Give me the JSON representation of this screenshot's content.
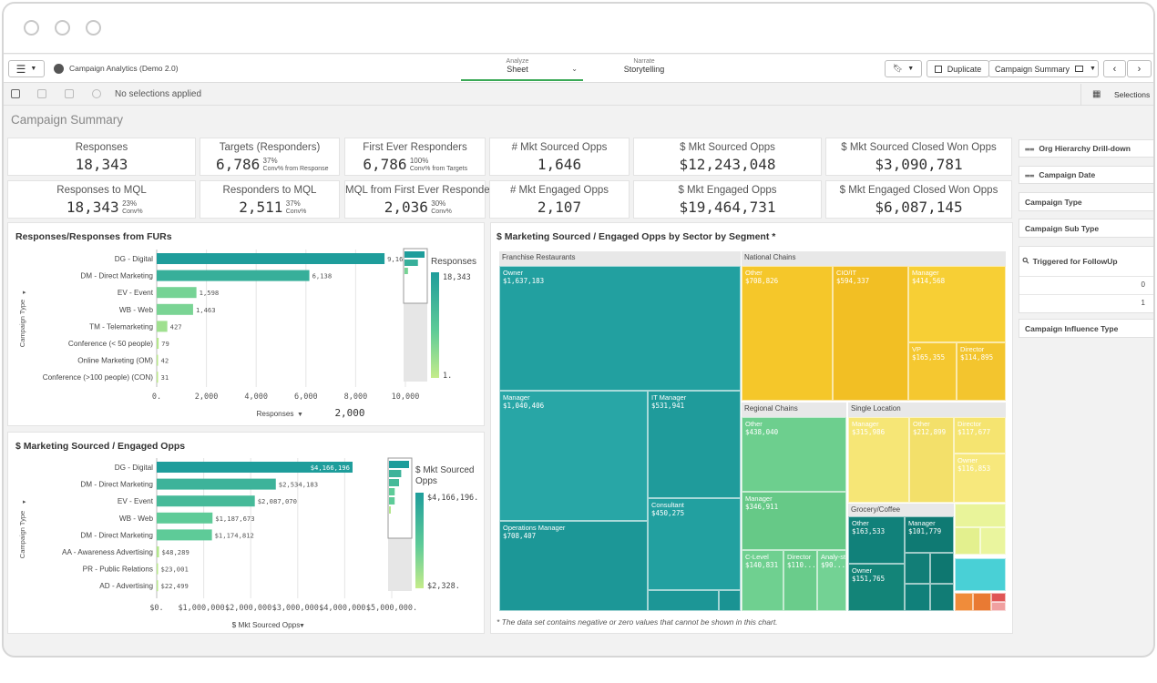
{
  "app": {
    "title": "Campaign Analytics (Demo 2.0)",
    "tabs": [
      {
        "small": "Analyze",
        "label": "Sheet"
      },
      {
        "small": "Narrate",
        "label": "Storytelling"
      }
    ],
    "duplicate_label": "Duplicate",
    "sheet_name": "Campaign Summary",
    "selections_status": "No selections applied",
    "selections_label": "Selections",
    "sheet_title": "Campaign Summary",
    "accent": "#3aa956"
  },
  "kpis": [
    {
      "title": "Responses",
      "value": "18,343"
    },
    {
      "title": "Targets (Responders)",
      "value": "6,786",
      "pct": "37%",
      "sub": "Conv% from Response"
    },
    {
      "title": "First Ever Responders",
      "value": "6,786",
      "pct": "100%",
      "sub": "Conv% from Targets"
    },
    {
      "title": "# Mkt Sourced Opps",
      "value": "1,646"
    },
    {
      "title": "$ Mkt Sourced Opps",
      "value": "$12,243,048"
    },
    {
      "title": "$ Mkt Sourced Closed Won Opps",
      "value": "$3,090,781"
    },
    {
      "title": "Responses to MQL",
      "value": "18,343",
      "pct": "23%",
      "sub": "Conv%"
    },
    {
      "title": "Responders to MQL",
      "value": "2,511",
      "pct": "37%",
      "sub": "Conv%"
    },
    {
      "title": "MQL from First Ever Responders",
      "value": "2,036",
      "pct": "30%",
      "sub": "Conv%"
    },
    {
      "title": "# Mkt Engaged Opps",
      "value": "2,107"
    },
    {
      "title": "$ Mkt Engaged Opps",
      "value": "$19,464,731"
    },
    {
      "title": "$ Mkt Engaged Closed Won Opps",
      "value": "$6,087,145"
    }
  ],
  "filters": [
    {
      "label": "Org Hierarchy Drill-down",
      "icon": "hierarchy-icon"
    },
    {
      "label": "Campaign Date",
      "icon": "hierarchy-icon"
    },
    {
      "label": "Campaign Type"
    },
    {
      "label": "Campaign Sub Type"
    },
    {
      "label": "Triggered for FollowUp",
      "values": [
        "0",
        "1"
      ]
    },
    {
      "label": "Campaign Influence Type"
    }
  ],
  "chart_data": [
    {
      "type": "bar",
      "title": "Responses/Responses from FURs",
      "ylabel": "Campaign Type",
      "xlabel": "Responses",
      "xlim": [
        0,
        10000
      ],
      "xticks": [
        "0.",
        "2,000",
        "4,000",
        "6,000",
        "8,000",
        "10,000"
      ],
      "categories": [
        "DG - Digital",
        "DM - Direct Marketing",
        "EV - Event",
        "WB - Web",
        "TM - Telemarketing",
        "Conference (< 50 people)",
        "Online Marketing (OM)",
        "Conference (>100 people) (CON)"
      ],
      "values": [
        9161,
        6138,
        1598,
        1463,
        427,
        79,
        42,
        31
      ],
      "labels": [
        "9,161",
        "6,138",
        "1,598",
        "1,463",
        "427",
        "79",
        "42",
        "31"
      ],
      "scroll_value": "2,000",
      "legend": {
        "title": "Responses",
        "max": "18,343",
        "min": "1."
      }
    },
    {
      "type": "bar",
      "title": "$ Marketing Sourced / Engaged Opps",
      "ylabel": "Campaign Type",
      "xlabel": "$ Mkt Sourced Opps",
      "xlim": [
        0,
        5000000
      ],
      "xticks": [
        "$0.",
        "$1,000,000.",
        "$2,000,000.",
        "$3,000,000.",
        "$4,000,000.",
        "$5,000,000."
      ],
      "categories": [
        "DG - Digital",
        "DM - Direct Marketing",
        "EV - Event",
        "WB - Web",
        "DM - Direct Marketing",
        "AA - Awareness Advertising",
        "PR - Public Relations",
        "AD - Advertising"
      ],
      "values": [
        4166196,
        2534183,
        2087070,
        1187673,
        1174812,
        48289,
        23001,
        22499
      ],
      "labels": [
        "$4,166,196",
        "$2,534,183",
        "$2,087,070",
        "$1,187,673",
        "$1,174,812",
        "$48,289",
        "$23,001",
        "$22,499"
      ],
      "legend": {
        "title": "$ Mkt Sourced Opps",
        "max": "$4,166,196.",
        "min": "$2,328."
      }
    },
    {
      "type": "treemap",
      "title": "$ Marketing Sourced / Engaged Opps by Sector by Segment *",
      "footnote": "* The data set contains negative or zero values that cannot be shown in this chart.",
      "groups": [
        {
          "name": "Franchise Restaurants",
          "color": "#22a0a0",
          "cells": [
            {
              "name": "Owner",
              "value": "$1,637,183"
            },
            {
              "name": "Manager",
              "value": "$1,040,406"
            },
            {
              "name": "IT Manager",
              "value": "$531,941"
            },
            {
              "name": "Operations Manager",
              "value": "$708,407"
            },
            {
              "name": "Consultant",
              "value": "$450,275"
            }
          ]
        },
        {
          "name": "National Chains",
          "color": "#f5cb2e",
          "cells": [
            {
              "name": "Other",
              "value": "$708,826"
            },
            {
              "name": "CIO/IT",
              "value": "$594,337"
            },
            {
              "name": "Manager",
              "value": "$414,568"
            },
            {
              "name": "VP",
              "value": "$165,355"
            },
            {
              "name": "Director",
              "value": "$114,895"
            }
          ]
        },
        {
          "name": "Regional Chains",
          "color": "#6dcf8e",
          "cells": [
            {
              "name": "Other",
              "value": "$438,040"
            },
            {
              "name": "Manager",
              "value": "$346,911"
            },
            {
              "name": "C-Level",
              "value": "$140,831"
            },
            {
              "name": "Director",
              "value": "$110..."
            },
            {
              "name": "Analy-st",
              "value": "$90..."
            }
          ]
        },
        {
          "name": "Single Location",
          "color": "#f6e676",
          "cells": [
            {
              "name": "Manager",
              "value": "$315,986"
            },
            {
              "name": "Other",
              "value": "$212,899"
            },
            {
              "name": "Director",
              "value": "$117,677"
            },
            {
              "name": "Owner",
              "value": "$116,853"
            }
          ]
        },
        {
          "name": "Grocery/Coffee",
          "color": "#11817a",
          "cells": [
            {
              "name": "Other",
              "value": "$163,533"
            },
            {
              "name": "Manager",
              "value": "$101,779"
            },
            {
              "name": "Owner",
              "value": "$151,765"
            }
          ]
        }
      ]
    }
  ]
}
